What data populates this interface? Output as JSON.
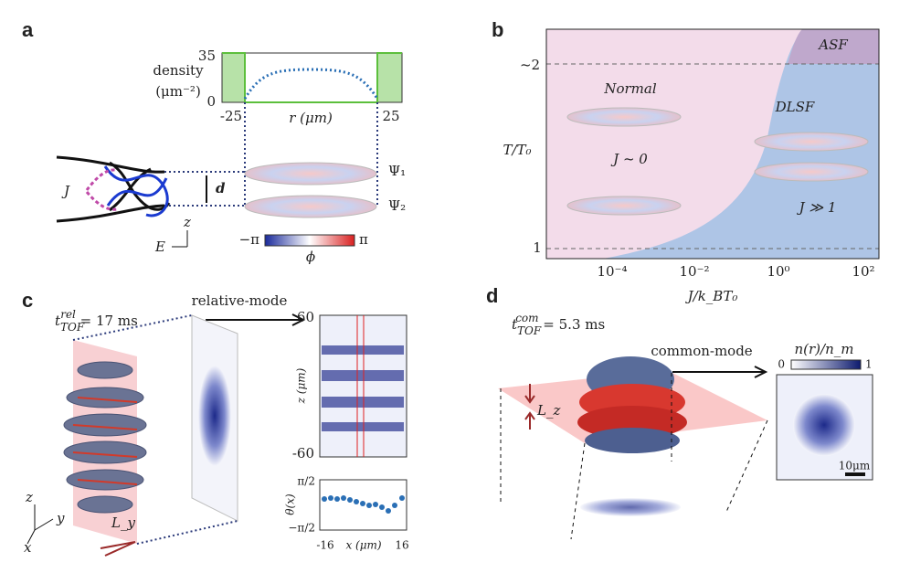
{
  "panels": {
    "a": {
      "label": "a",
      "density_label": "density",
      "density_unit": "(μm⁻²)",
      "y_tick_top": "35",
      "y_tick_bottom": "0",
      "x_tick_left": "-25",
      "x_tick_right": "25",
      "x_axis_label": "r (μm)",
      "psi1": "Ψ₁",
      "psi2": "Ψ₂",
      "coupling": "J",
      "spacing": "d",
      "axis_z": "z",
      "axis_e": "E",
      "colorbar_min": "−π",
      "colorbar_max": "π",
      "colorbar_label": "ϕ"
    },
    "b": {
      "label": "b",
      "y_tick_top": "~2",
      "y_tick_bottom": "1",
      "y_axis_label": "T/T₀",
      "x_ticks": [
        "10⁻⁴",
        "10⁻²",
        "10⁰",
        "10²"
      ],
      "x_axis_label": "J/k_BT₀",
      "regions": {
        "asf": "ASF",
        "normal": "Normal",
        "dlsf": "DLSF"
      },
      "annotations": {
        "weak": "J ~ 0",
        "strong": "J ≫ 1"
      }
    },
    "c": {
      "label": "c",
      "time": {
        "symbol": "t",
        "sub": "TOF",
        "sup": "rel",
        "value": " = 17 ms"
      },
      "mode": "relative-mode",
      "image_y_top": "60",
      "image_y_bottom": "-60",
      "image_y_label": "z (μm)",
      "phase_y_top": "π/2",
      "phase_y_bottom": "−π/2",
      "phase_y_label": "θ(x)",
      "phase_x_left": "-16",
      "phase_x_right": "16",
      "phase_x_label": "x (μm)",
      "length": "L_y",
      "axis_z": "z",
      "axis_y": "y",
      "axis_x": "x"
    },
    "d": {
      "label": "d",
      "time": {
        "symbol": "t",
        "sub": "TOF",
        "sup": "com",
        "value": " = 5.3 ms"
      },
      "mode": "common-mode",
      "density_label": "n(r)/n_m",
      "colorbar_min": "0",
      "colorbar_max": "1",
      "scale_bar": "10μm",
      "length": "L_z"
    }
  }
}
